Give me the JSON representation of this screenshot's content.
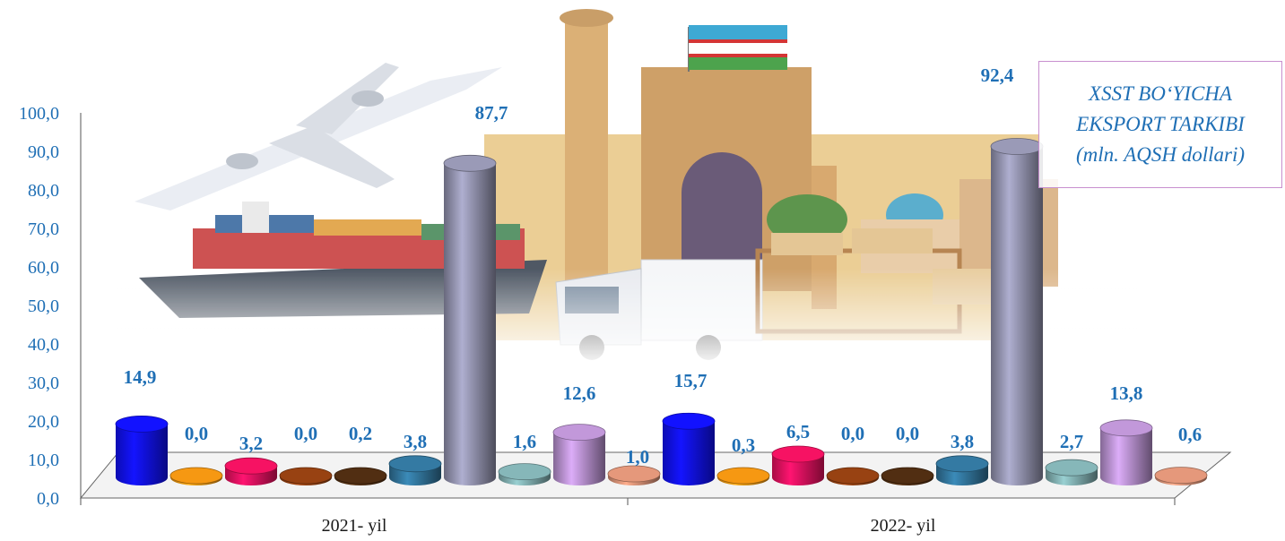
{
  "chart_data": {
    "type": "bar",
    "title": "XSST BO‘YICHA EKSPORT TARKIBI (mln. AQSH dollari)",
    "title_lines": [
      "XSST BO‘YICHA",
      "EKSPORT TARKIBI",
      "(mln. AQSH dollari)"
    ],
    "categories": [
      "2021- yil",
      "2022- yil"
    ],
    "ylim": [
      0,
      100
    ],
    "yticks": [
      "0,0",
      "10,0",
      "20,0",
      "30,0",
      "40,0",
      "50,0",
      "60,0",
      "70,0",
      "80,0",
      "90,0",
      "100,0"
    ],
    "grid": false,
    "groups": [
      {
        "category": "2021- yil",
        "values": [
          14.9,
          0.0,
          3.2,
          0.0,
          0.2,
          3.8,
          87.7,
          1.6,
          12.6,
          1.0
        ],
        "labels": [
          "14,9",
          "0,0",
          "3,2",
          "0,0",
          "0,2",
          "3,8",
          "87,7",
          "1,6",
          "12,6",
          "1,0"
        ]
      },
      {
        "category": "2022- yil",
        "values": [
          15.7,
          0.3,
          6.5,
          0.0,
          0.0,
          3.8,
          92.4,
          2.7,
          13.8,
          0.6
        ],
        "labels": [
          "15,7",
          "0,3",
          "6,5",
          "0,0",
          "0,0",
          "3,8",
          "92,4",
          "2,7",
          "13,8",
          "0,6"
        ]
      }
    ],
    "series_colors": [
      "#1010ee",
      "#e08a10",
      "#e0105a",
      "#8a3c10",
      "#4a2a10",
      "#2f6f94",
      "#8c8ca6",
      "#7aa6a8",
      "#b08ac6",
      "#d08a70"
    ]
  },
  "background": {
    "description_icons": [
      "airplane-icon",
      "cargo-ship-icon",
      "truck-icon",
      "mosque-icon",
      "flag-icon",
      "warehouse-icon"
    ]
  }
}
